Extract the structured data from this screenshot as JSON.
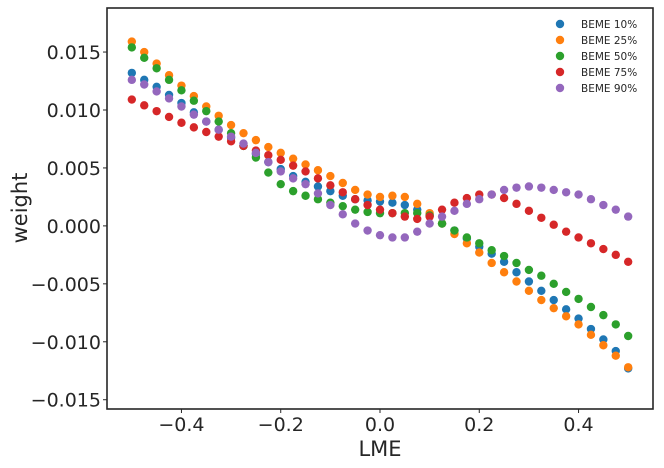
{
  "chart_data": {
    "type": "scatter",
    "title": "",
    "xlabel": "LME",
    "ylabel": "weight",
    "xlim": [
      -0.55,
      0.55
    ],
    "ylim": [
      -0.0158,
      0.0188
    ],
    "x_ticks": [
      -0.4,
      -0.2,
      0.0,
      0.2,
      0.4
    ],
    "x_tick_labels": [
      "−0.4",
      "−0.2",
      "0.0",
      "0.2",
      "0.4"
    ],
    "y_ticks": [
      0.015,
      0.01,
      0.005,
      0.0,
      -0.005,
      -0.01,
      -0.015
    ],
    "y_tick_labels": [
      "0.015",
      "0.010",
      "0.005",
      "0.000",
      "−0.005",
      "−0.010",
      "−0.015"
    ],
    "grid": false,
    "legend_position": "top-right",
    "x": [
      -0.5,
      -0.475,
      -0.45,
      -0.425,
      -0.4,
      -0.375,
      -0.35,
      -0.325,
      -0.3,
      -0.275,
      -0.25,
      -0.225,
      -0.2,
      -0.175,
      -0.15,
      -0.125,
      -0.1,
      -0.075,
      -0.05,
      -0.025,
      0.0,
      0.025,
      0.05,
      0.075,
      0.1,
      0.125,
      0.15,
      0.175,
      0.2,
      0.225,
      0.25,
      0.275,
      0.3,
      0.325,
      0.35,
      0.375,
      0.4,
      0.425,
      0.45,
      0.475,
      0.5
    ],
    "series": [
      {
        "name": "BEME 10%",
        "color": "#1f77b4",
        "values": [
          0.0132,
          0.0126,
          0.012,
          0.0113,
          0.0106,
          0.0098,
          0.009,
          0.0083,
          0.0076,
          0.0069,
          0.0062,
          0.0055,
          0.0049,
          0.0043,
          0.0038,
          0.0034,
          0.003,
          0.0026,
          0.0023,
          0.0022,
          0.0021,
          0.002,
          0.0018,
          0.0014,
          0.0009,
          0.0002,
          -0.0004,
          -0.0011,
          -0.0018,
          -0.0024,
          -0.0031,
          -0.004,
          -0.0048,
          -0.0056,
          -0.0064,
          -0.0072,
          -0.008,
          -0.0089,
          -0.0098,
          -0.0108,
          -0.0123
        ]
      },
      {
        "name": "BEME 25%",
        "color": "#ff7f0e",
        "values": [
          0.0159,
          0.015,
          0.014,
          0.013,
          0.0121,
          0.0112,
          0.0103,
          0.0095,
          0.0087,
          0.008,
          0.0074,
          0.0068,
          0.0063,
          0.0058,
          0.0053,
          0.0048,
          0.0043,
          0.0037,
          0.0031,
          0.0027,
          0.0025,
          0.0026,
          0.0025,
          0.0019,
          0.0011,
          0.0002,
          -0.0007,
          -0.0015,
          -0.0023,
          -0.0032,
          -0.004,
          -0.0048,
          -0.0056,
          -0.0064,
          -0.0071,
          -0.0078,
          -0.0085,
          -0.0094,
          -0.0103,
          -0.0112,
          -0.0122
        ]
      },
      {
        "name": "BEME 50%",
        "color": "#2ca02c",
        "values": [
          0.0154,
          0.0145,
          0.0136,
          0.0126,
          0.0117,
          0.0108,
          0.0099,
          0.009,
          0.008,
          0.0069,
          0.0059,
          0.0046,
          0.0036,
          0.003,
          0.0026,
          0.0023,
          0.002,
          0.0017,
          0.0014,
          0.0012,
          0.0011,
          0.0011,
          0.0011,
          0.0011,
          0.0009,
          0.0002,
          -0.0004,
          -0.001,
          -0.0015,
          -0.0021,
          -0.0026,
          -0.0032,
          -0.0038,
          -0.0043,
          -0.005,
          -0.0057,
          -0.0063,
          -0.007,
          -0.0077,
          -0.0085,
          -0.0095
        ]
      },
      {
        "name": "BEME 75%",
        "color": "#d62728",
        "values": [
          0.0109,
          0.0104,
          0.0099,
          0.0094,
          0.0089,
          0.0085,
          0.0081,
          0.0077,
          0.0073,
          0.0069,
          0.0065,
          0.0061,
          0.0057,
          0.0052,
          0.0047,
          0.0041,
          0.0035,
          0.0029,
          0.0023,
          0.0018,
          0.0014,
          0.0011,
          0.0008,
          0.0006,
          0.0008,
          0.0014,
          0.002,
          0.0024,
          0.0027,
          0.0027,
          0.0024,
          0.0019,
          0.0013,
          0.0007,
          0.0001,
          -0.0005,
          -0.001,
          -0.0015,
          -0.002,
          -0.0025,
          -0.0031
        ]
      },
      {
        "name": "BEME 90%",
        "color": "#9467bd",
        "values": [
          0.0126,
          0.0122,
          0.0116,
          0.011,
          0.0103,
          0.0096,
          0.009,
          0.0083,
          0.0077,
          0.0071,
          0.0063,
          0.0055,
          0.0047,
          0.0041,
          0.0036,
          0.0028,
          0.0018,
          0.001,
          0.0002,
          -0.0004,
          -0.0008,
          -0.001,
          -0.001,
          -0.0005,
          0.0002,
          0.0008,
          0.0013,
          0.0019,
          0.0023,
          0.0027,
          0.0031,
          0.0033,
          0.0034,
          0.0033,
          0.0031,
          0.0029,
          0.0027,
          0.0023,
          0.0018,
          0.0014,
          0.0008
        ]
      }
    ]
  }
}
